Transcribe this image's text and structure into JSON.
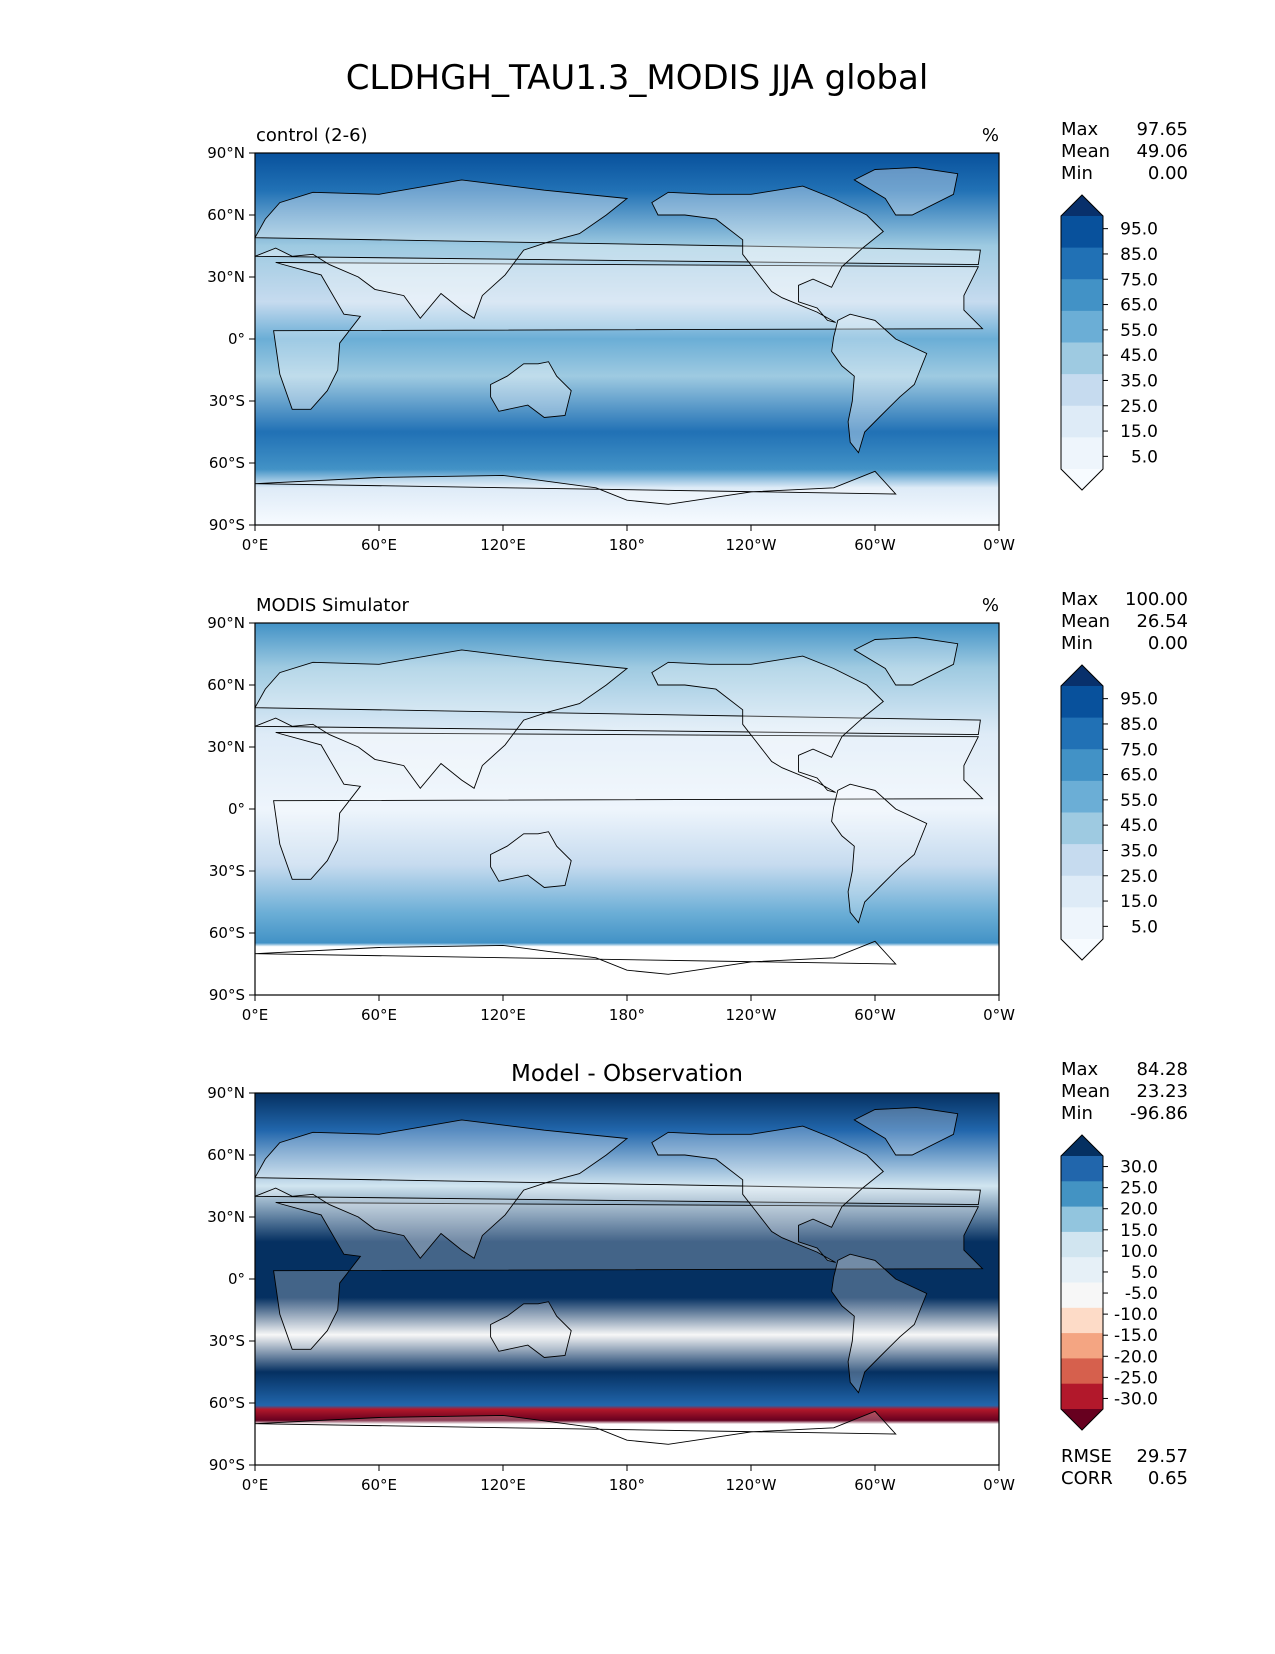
{
  "title": "CLDHGH_TAU1.3_MODIS JJA global",
  "lat_ticks": [
    "90°N",
    "60°N",
    "30°N",
    "0°",
    "30°S",
    "60°S",
    "90°S"
  ],
  "lon_ticks": [
    "0°E",
    "60°E",
    "120°E",
    "180°",
    "120°W",
    "60°W",
    "0°W"
  ],
  "panels": [
    {
      "left_title": "control (2-6)",
      "center_title": "",
      "units": "%",
      "stats": [
        {
          "label": "Max",
          "value": "97.65"
        },
        {
          "label": "Mean",
          "value": "49.06"
        },
        {
          "label": "Min",
          "value": "0.00"
        }
      ],
      "colorbar_labels": [
        "95.0",
        "85.0",
        "75.0",
        "65.0",
        "55.0",
        "45.0",
        "35.0",
        "25.0",
        "15.0",
        "5.0"
      ],
      "colorbar_colors": [
        "#08306b",
        "#08519c",
        "#2171b5",
        "#4292c6",
        "#6baed6",
        "#9ecae1",
        "#c6dbef",
        "#deebf7",
        "#eef5fc",
        "#f7fbff"
      ],
      "extra_stats": []
    },
    {
      "left_title": "MODIS Simulator",
      "center_title": "",
      "units": "%",
      "stats": [
        {
          "label": "Max",
          "value": "100.00"
        },
        {
          "label": "Mean",
          "value": "26.54"
        },
        {
          "label": "Min",
          "value": "0.00"
        }
      ],
      "colorbar_labels": [
        "95.0",
        "85.0",
        "75.0",
        "65.0",
        "55.0",
        "45.0",
        "35.0",
        "25.0",
        "15.0",
        "5.0"
      ],
      "colorbar_colors": [
        "#08306b",
        "#08519c",
        "#2171b5",
        "#4292c6",
        "#6baed6",
        "#9ecae1",
        "#c6dbef",
        "#deebf7",
        "#eef5fc",
        "#f7fbff"
      ],
      "extra_stats": []
    },
    {
      "left_title": "",
      "center_title": "Model - Observation",
      "units": "",
      "stats": [
        {
          "label": "Max",
          "value": "84.28"
        },
        {
          "label": "Mean",
          "value": "23.23"
        },
        {
          "label": "Min",
          "value": "-96.86"
        }
      ],
      "colorbar_labels": [
        "30.0",
        "25.0",
        "20.0",
        "15.0",
        "10.0",
        "5.0",
        "-5.0",
        "-10.0",
        "-15.0",
        "-20.0",
        "-25.0",
        "-30.0"
      ],
      "colorbar_colors": [
        "#053061",
        "#2166ac",
        "#4393c3",
        "#92c5de",
        "#d1e5f0",
        "#e6f0f7",
        "#f7f7f7",
        "#fddbc7",
        "#f4a582",
        "#d6604d",
        "#b2182b",
        "#67001f"
      ],
      "extra_stats": [
        {
          "label": "RMSE",
          "value": "29.57"
        },
        {
          "label": "CORR",
          "value": "0.65"
        }
      ]
    }
  ]
}
